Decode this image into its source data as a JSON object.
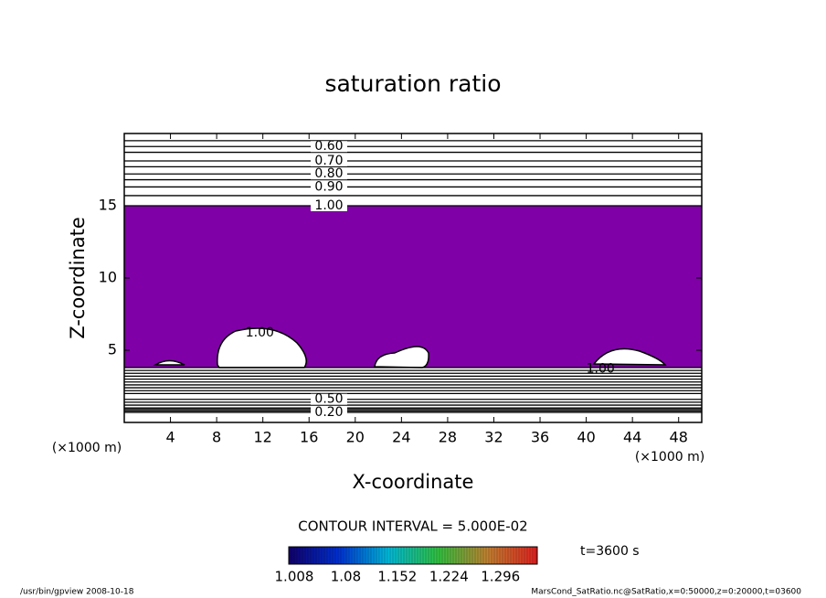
{
  "chart_data": {
    "type": "contour",
    "title": "saturation ratio",
    "xlabel": "X-coordinate",
    "ylabel": "Z-coordinate",
    "xunit": "(×1000 m)",
    "yunit": "(×1000 m)",
    "xlim": [
      0,
      50
    ],
    "ylim": [
      0,
      20
    ],
    "xticks": [
      4,
      8,
      12,
      16,
      20,
      24,
      28,
      32,
      36,
      40,
      44,
      48
    ],
    "yticks": [
      5,
      10,
      15
    ],
    "shade_color": "#8000a8",
    "contours": [
      {
        "level": 0.55,
        "z": 19.5
      },
      {
        "level": 0.6,
        "z": 19.1,
        "label": "0.60"
      },
      {
        "level": 0.65,
        "z": 18.7
      },
      {
        "level": 0.7,
        "z": 18.1,
        "label": "0.70"
      },
      {
        "level": 0.75,
        "z": 17.7
      },
      {
        "level": 0.8,
        "z": 17.2,
        "label": "0.80"
      },
      {
        "level": 0.85,
        "z": 16.8
      },
      {
        "level": 0.9,
        "z": 16.3,
        "label": "0.90"
      },
      {
        "level": 0.95,
        "z": 15.7
      },
      {
        "level": 1.0,
        "z": 15.0,
        "label": "1.00"
      },
      {
        "level": 1.0,
        "z": 3.8
      },
      {
        "level": 0.95,
        "z": 3.6
      },
      {
        "level": 0.9,
        "z": 3.4
      },
      {
        "level": 0.85,
        "z": 3.2
      },
      {
        "level": 0.8,
        "z": 3.0
      },
      {
        "level": 0.75,
        "z": 2.8
      },
      {
        "level": 0.7,
        "z": 2.6
      },
      {
        "level": 0.65,
        "z": 2.4
      },
      {
        "level": 0.6,
        "z": 2.2
      },
      {
        "level": 0.55,
        "z": 2.0
      },
      {
        "level": 0.5,
        "z": 1.6,
        "label": "0.50"
      },
      {
        "level": 0.45,
        "z": 1.4
      },
      {
        "level": 0.4,
        "z": 1.2
      },
      {
        "level": 0.35,
        "z": 1.0
      },
      {
        "level": 0.3,
        "z": 0.9
      },
      {
        "level": 0.25,
        "z": 0.8
      },
      {
        "level": 0.2,
        "z": 0.7,
        "label": "0.20"
      }
    ],
    "annotations": [
      {
        "text": "1.00",
        "x": 10.5,
        "z": 6.2
      },
      {
        "text": "1.00",
        "x": 40.0,
        "z": 3.7
      }
    ],
    "contour_interval": "CONTOUR INTERVAL = 5.000E-02",
    "time_label": "t=3600 s",
    "colorbar": {
      "range": [
        1.008,
        1.355
      ],
      "ticks": [
        1.008,
        1.08,
        {
          "value": 1.152,
          "label": "1.152"
        },
        {
          "value": 1.224,
          "label": "1.224"
        },
        {
          "value": 1.296,
          "label": "1.296"
        }
      ]
    },
    "footer_left": "/usr/bin/gpview   2008-10-18",
    "footer_right": "MarsCond_SatRatio.nc@SatRatio,x=0:50000,z=0:20000,t=03600"
  }
}
